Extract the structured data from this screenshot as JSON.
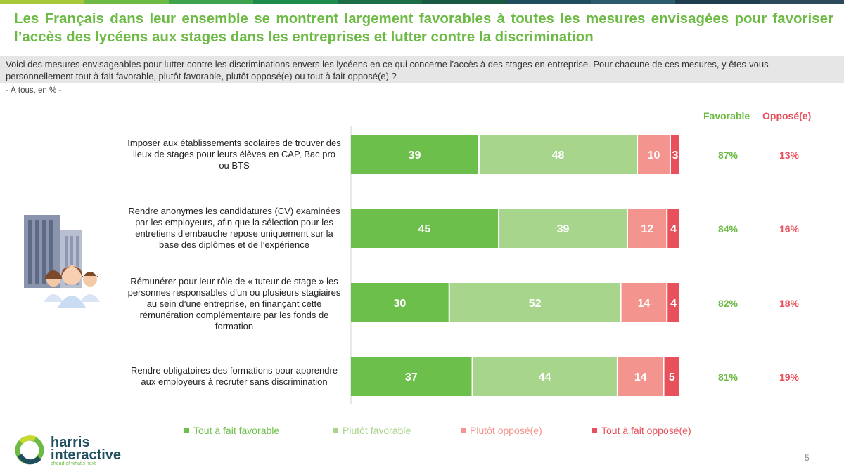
{
  "colors": {
    "tout_favorable": "#6dbf4b",
    "plutot_favorable": "#a8d58c",
    "plutot_oppose": "#f4948e",
    "tout_oppose": "#e8505b",
    "favorable_text": "#6dbb45",
    "oppose_text": "#e8505b",
    "topbar": [
      "#a5c93a",
      "#6dbb45",
      "#3fa34d",
      "#1e8a4c",
      "#1b6e46",
      "#1a5a45",
      "#1f4e5f",
      "#2b5d6e",
      "#1e3d4d",
      "#2c4a5a"
    ]
  },
  "header": {
    "title": "Les Français dans leur ensemble se montrent largement favorables à toutes les mesures envisagées pour favoriser l’accès des lycéens aux stages dans les entreprises et lutter contre la discrimination",
    "question": "Voici des mesures envisageables pour lutter contre les discriminations envers les lycéens en ce qui concerne l’accès à des stages en entreprise. Pour chacune de ces mesures, y êtes-vous personnellement tout à fait favorable, plutôt favorable, plutôt opposé(e) ou tout à fait opposé(e) ?",
    "base": "- À tous, en % -"
  },
  "columns": {
    "favorable": "Favorable",
    "oppose": "Opposé(e)"
  },
  "chart_data": {
    "type": "bar",
    "orientation": "horizontal",
    "stacked": true,
    "categories": [
      "Imposer aux établissements scolaires de trouver des lieux de stages pour leurs élèves en CAP, Bac pro ou BTS",
      "Rendre anonymes les candidatures (CV) examinées par les employeurs, afin que la sélection pour les entretiens d'embauche repose uniquement sur la base des diplômes et de l’expérience",
      "Rémunérer pour leur rôle de « tuteur de stage » les personnes responsables d’un ou plusieurs stagiaires au sein d’une entreprise, en finançant cette rémunération complémentaire par les fonds de formation",
      "Rendre obligatoires des formations pour apprendre aux employeurs à recruter sans discrimination"
    ],
    "series": [
      {
        "name": "Tout à fait favorable",
        "values": [
          39,
          45,
          30,
          37
        ]
      },
      {
        "name": "Plutôt favorable",
        "values": [
          48,
          39,
          52,
          44
        ]
      },
      {
        "name": "Plutôt opposé(e)",
        "values": [
          10,
          12,
          14,
          14
        ]
      },
      {
        "name": "Tout à fait opposé(e)",
        "values": [
          3,
          4,
          4,
          5
        ]
      }
    ],
    "favorable": [
      "87%",
      "84%",
      "82%",
      "81%"
    ],
    "oppose": [
      "13%",
      "16%",
      "18%",
      "19%"
    ],
    "legend_position": "bottom"
  },
  "footer": {
    "logo_line1": "harris",
    "logo_line2": "interactive",
    "logo_tagline": "ahead of what's next",
    "page_number": "5"
  }
}
